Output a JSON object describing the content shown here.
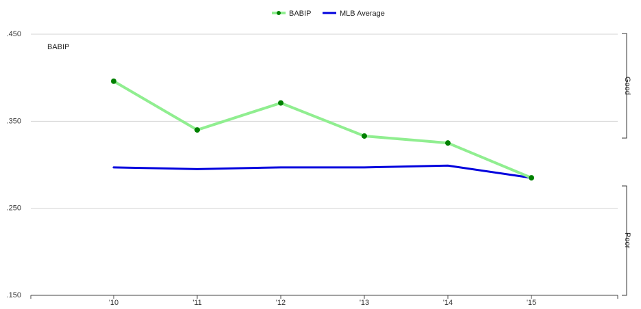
{
  "chart_data": {
    "type": "line",
    "title": "BABIP",
    "categories": [
      "'10",
      "'11",
      "'12",
      "'13",
      "'14",
      "'15"
    ],
    "y_ticks": [
      ".150",
      ".250",
      ".350",
      ".450"
    ],
    "ylim": [
      0.15,
      0.45
    ],
    "grid": true,
    "legend_position": "top-center",
    "series": [
      {
        "name": "BABIP",
        "values": [
          0.396,
          0.34,
          0.371,
          0.333,
          0.325,
          0.285
        ],
        "color": "#90ee90",
        "marker_color": "#008000"
      },
      {
        "name": "MLB Average",
        "values": [
          0.297,
          0.295,
          0.297,
          0.297,
          0.299,
          0.285
        ],
        "color": "#0000dd"
      }
    ],
    "bands": [
      {
        "label": "Good"
      },
      {
        "label": "Poor"
      }
    ]
  }
}
